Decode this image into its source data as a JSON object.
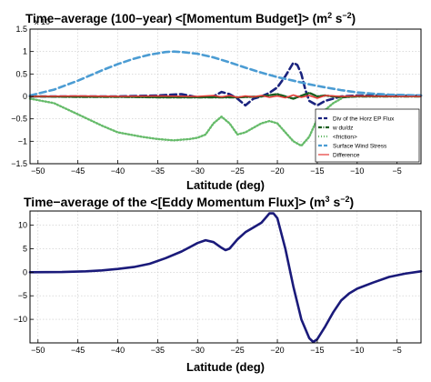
{
  "chart_data": [
    {
      "type": "line",
      "title": {
        "main": "Time−average (100−year) <[Momentum Budget]> (m",
        "sup1": "2",
        "mid": " s",
        "sup2": "−2",
        "end": ")"
      },
      "scale_label": "x 10",
      "xlabel": "Latitude (deg)",
      "ylabel": "",
      "xlim": [
        -51,
        -2
      ],
      "ylim": [
        -1.5,
        1.5
      ],
      "xticks": [
        -50,
        -45,
        -40,
        -35,
        -30,
        -25,
        -20,
        -15,
        -10,
        -5
      ],
      "xtick_labels": [
        "−50",
        "−45",
        "−40",
        "−35",
        "−30",
        "−25",
        "−20",
        "−15",
        "−10",
        "−5"
      ],
      "yticks": [
        -1.5,
        -1,
        -0.5,
        0,
        0.5,
        1,
        1.5
      ],
      "ytick_labels": [
        "−1.5",
        "−1",
        "−0.5",
        "0",
        "0.5",
        "1",
        "1.5"
      ],
      "grid": true,
      "legend_position": "bottom-right",
      "series": [
        {
          "name": "Div of the Horz EP Flux",
          "color": "#1a237e",
          "style": "dashed",
          "x": [
            -51,
            -45,
            -40,
            -35,
            -32,
            -30,
            -28,
            -27,
            -26,
            -25,
            -24,
            -23,
            -22,
            -21,
            -20,
            -19,
            -18,
            -17.5,
            -17,
            -16.5,
            -16,
            -15,
            -14,
            -12,
            -10,
            -5,
            -2
          ],
          "y": [
            0.0,
            0.0,
            0.0,
            0.02,
            0.05,
            -0.02,
            0.0,
            0.1,
            0.05,
            -0.05,
            -0.2,
            -0.05,
            0.0,
            0.08,
            0.2,
            0.45,
            0.75,
            0.7,
            0.5,
            0.15,
            -0.1,
            -0.2,
            -0.1,
            0.0,
            0.02,
            0.02,
            0.02
          ]
        },
        {
          "name": "w du/dz",
          "color": "#1b5e20",
          "style": "dash-dot",
          "x": [
            -51,
            -45,
            -40,
            -35,
            -30,
            -25,
            -22,
            -20,
            -18,
            -16,
            -15,
            -14,
            -12,
            -10,
            -5,
            -2
          ],
          "y": [
            0.0,
            -0.01,
            -0.01,
            -0.02,
            -0.02,
            -0.02,
            0.0,
            0.05,
            -0.05,
            0.08,
            0.0,
            0.02,
            -0.02,
            0.0,
            0.0,
            0.0
          ]
        },
        {
          "name": "<friction>",
          "color": "#66bb6a",
          "style": "dotted",
          "x": [
            -51,
            -48,
            -45,
            -42,
            -40,
            -37,
            -35,
            -33,
            -31,
            -30,
            -29,
            -28,
            -27,
            -26,
            -25,
            -24,
            -23,
            -22,
            -21,
            -20,
            -19,
            -18,
            -17,
            -16,
            -15,
            -14,
            -13,
            -12
          ],
          "y": [
            -0.05,
            -0.15,
            -0.4,
            -0.65,
            -0.8,
            -0.9,
            -0.95,
            -0.98,
            -0.95,
            -0.92,
            -0.85,
            -0.6,
            -0.45,
            -0.6,
            -0.85,
            -0.8,
            -0.7,
            -0.6,
            -0.55,
            -0.6,
            -0.8,
            -1.0,
            -1.1,
            -0.9,
            -0.5,
            -0.3,
            -0.15,
            -0.05
          ]
        },
        {
          "name": "Surface Wind Stress",
          "color": "#4b9cd3",
          "style": "dashed",
          "x": [
            -51,
            -48,
            -45,
            -42,
            -40,
            -38,
            -36,
            -34,
            -33,
            -32,
            -30,
            -28,
            -26,
            -24,
            -22,
            -20,
            -18,
            -16,
            -14,
            -12,
            -10,
            -8,
            -6,
            -4,
            -2
          ],
          "y": [
            0.02,
            0.15,
            0.35,
            0.58,
            0.72,
            0.84,
            0.93,
            0.99,
            1.0,
            0.99,
            0.95,
            0.87,
            0.76,
            0.64,
            0.53,
            0.43,
            0.35,
            0.27,
            0.2,
            0.14,
            0.09,
            0.06,
            0.04,
            0.03,
            0.02
          ]
        },
        {
          "name": "Difference",
          "color": "#e53935",
          "style": "solid",
          "x": [
            -51,
            -45,
            -40,
            -35,
            -30,
            -28,
            -27,
            -26,
            -25,
            -24,
            -23,
            -22,
            -21,
            -20,
            -19,
            -18,
            -17,
            -16,
            -15,
            -14,
            -12,
            -10,
            -5,
            -2
          ],
          "y": [
            0.0,
            0.01,
            0.0,
            0.01,
            0.0,
            0.02,
            -0.01,
            0.02,
            -0.02,
            0.01,
            -0.01,
            0.02,
            -0.02,
            0.01,
            -0.03,
            0.03,
            -0.02,
            0.02,
            -0.04,
            0.02,
            0.0,
            0.01,
            0.0,
            0.0
          ]
        }
      ]
    },
    {
      "type": "line",
      "title": {
        "main": "Time−average of the <[Eddy Momentum Flux]> (m",
        "sup1": "3",
        "mid": " s",
        "sup2": "−2",
        "end": ")"
      },
      "xlabel": "Latitude (deg)",
      "ylabel": "",
      "xlim": [
        -51,
        -2
      ],
      "ylim": [
        -15,
        13
      ],
      "xticks": [
        -50,
        -45,
        -40,
        -35,
        -30,
        -25,
        -20,
        -15,
        -10,
        -5
      ],
      "xtick_labels": [
        "−50",
        "−45",
        "−40",
        "−35",
        "−30",
        "−25",
        "−20",
        "−15",
        "−10",
        "−5"
      ],
      "yticks": [
        -10,
        -5,
        0,
        5,
        10
      ],
      "ytick_labels": [
        "−10",
        "−5",
        "0",
        "5",
        "10"
      ],
      "grid": true,
      "legend_position": "none",
      "series": [
        {
          "name": "",
          "color": "#1a1a7a",
          "style": "solid",
          "x": [
            -51,
            -47,
            -44,
            -42,
            -40,
            -38,
            -36,
            -34,
            -32,
            -31,
            -30,
            -29,
            -28,
            -27,
            -26.5,
            -26,
            -25,
            -24,
            -23,
            -22,
            -21.5,
            -21,
            -20.5,
            -20,
            -19,
            -18,
            -17,
            -16,
            -15.5,
            -15,
            -14,
            -13,
            -12,
            -11,
            -10,
            -8,
            -6,
            -4,
            -2
          ],
          "y": [
            0.0,
            0.05,
            0.2,
            0.4,
            0.7,
            1.1,
            1.8,
            3.0,
            4.4,
            5.3,
            6.2,
            6.8,
            6.4,
            5.2,
            4.7,
            5.0,
            7.0,
            8.5,
            9.5,
            10.5,
            11.5,
            12.5,
            12.5,
            11.5,
            5.0,
            -3.0,
            -10.0,
            -14.0,
            -14.8,
            -14.2,
            -11.5,
            -8.5,
            -6.0,
            -4.5,
            -3.5,
            -2.2,
            -1.0,
            -0.3,
            0.2
          ]
        }
      ]
    }
  ]
}
